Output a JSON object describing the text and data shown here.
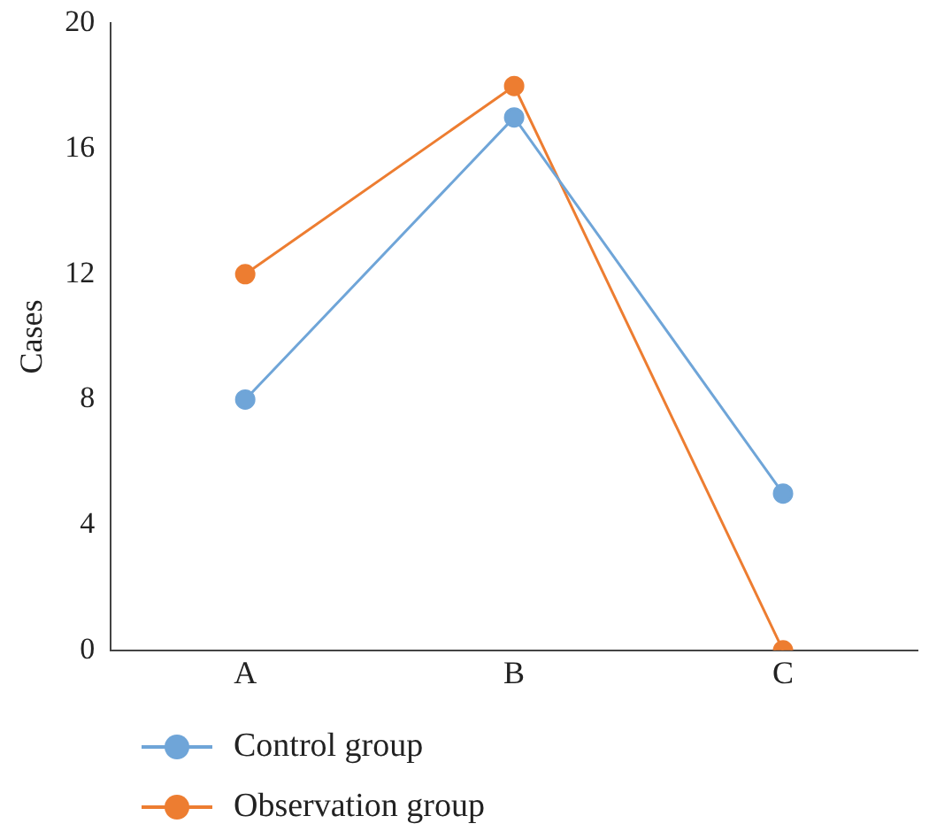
{
  "chart_data": {
    "type": "line",
    "ylabel": "Cases",
    "categories": [
      "A",
      "B",
      "C"
    ],
    "series": [
      {
        "name": "Control group",
        "color": "#6fa5d8",
        "values": [
          8,
          17,
          5
        ]
      },
      {
        "name": "Observation group",
        "color": "#ed7d31",
        "values": [
          12,
          18,
          0
        ]
      }
    ],
    "ylim": [
      0,
      20
    ],
    "yticks": [
      0,
      4,
      8,
      12,
      16,
      20
    ],
    "grid": false,
    "legend": "bottom left",
    "marker": "circle",
    "line_style": "solid"
  }
}
